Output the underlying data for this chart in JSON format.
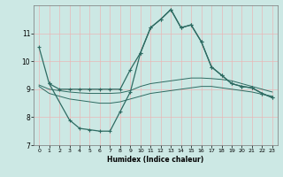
{
  "xlabel": "Humidex (Indice chaleur)",
  "background_color": "#cce8e4",
  "line_color": "#2e6b62",
  "grid_color": "#e8b8b8",
  "xlim": [
    -0.5,
    23.5
  ],
  "ylim": [
    7,
    12
  ],
  "yticks": [
    7,
    8,
    9,
    10,
    11
  ],
  "xticks": [
    0,
    1,
    2,
    3,
    4,
    5,
    6,
    7,
    8,
    9,
    10,
    11,
    12,
    13,
    14,
    15,
    16,
    17,
    18,
    19,
    20,
    21,
    22,
    23
  ],
  "line1_x": [
    0,
    1,
    2,
    3,
    4,
    5,
    6,
    7,
    8,
    9,
    10,
    11,
    12,
    13,
    14,
    15,
    16,
    17,
    18,
    19,
    20,
    21,
    22,
    23
  ],
  "line1_y": [
    10.5,
    9.2,
    9.0,
    9.0,
    9.0,
    9.0,
    9.0,
    9.0,
    9.0,
    9.7,
    10.3,
    11.2,
    11.5,
    11.85,
    11.2,
    11.3,
    10.7,
    9.8,
    9.5,
    9.2,
    9.1,
    9.05,
    8.85,
    8.7
  ],
  "line2_x": [
    0,
    1,
    2,
    3,
    4,
    5,
    6,
    7,
    8,
    9,
    10,
    11,
    12,
    13,
    14,
    15,
    16,
    17,
    18,
    19,
    20,
    21,
    22,
    23
  ],
  "line2_y": [
    9.15,
    9.0,
    8.95,
    8.9,
    8.87,
    8.85,
    8.85,
    8.85,
    8.87,
    8.95,
    9.1,
    9.2,
    9.25,
    9.3,
    9.35,
    9.4,
    9.4,
    9.38,
    9.35,
    9.3,
    9.2,
    9.1,
    9.0,
    8.9
  ],
  "line3_x": [
    0,
    1,
    2,
    3,
    4,
    5,
    6,
    7,
    8,
    9,
    10,
    11,
    12,
    13,
    14,
    15,
    16,
    17,
    18,
    19,
    20,
    21,
    22,
    23
  ],
  "line3_y": [
    9.1,
    8.85,
    8.75,
    8.65,
    8.6,
    8.55,
    8.5,
    8.5,
    8.55,
    8.65,
    8.75,
    8.85,
    8.9,
    8.95,
    9.0,
    9.05,
    9.1,
    9.1,
    9.05,
    9.0,
    8.95,
    8.9,
    8.82,
    8.75
  ],
  "line4_x": [
    1,
    3,
    4,
    5,
    6,
    7,
    8,
    9,
    10,
    11,
    12,
    13,
    14,
    15,
    16,
    17,
    18,
    19,
    20,
    21,
    22,
    23
  ],
  "line4_y": [
    9.2,
    7.9,
    7.6,
    7.55,
    7.5,
    7.5,
    8.2,
    8.9,
    10.3,
    11.2,
    11.5,
    11.85,
    11.2,
    11.3,
    10.7,
    9.8,
    9.5,
    9.2,
    9.1,
    9.05,
    8.85,
    8.7
  ]
}
